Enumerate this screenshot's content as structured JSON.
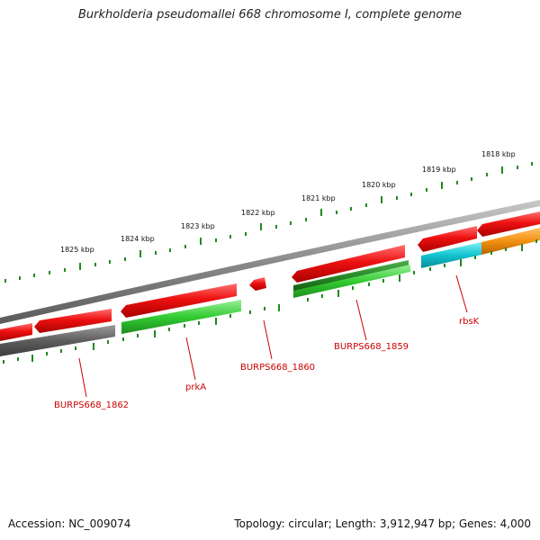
{
  "title": "Burkholderia pseudomallei 668 chromosome I, complete genome",
  "footer": {
    "accession": "Accession: NC_009074",
    "stats": "Topology: circular; Length: 3,912,947 bp; Genes: 4,000"
  },
  "ticks": [
    "1818 kbp",
    "1819 kbp",
    "1820 kbp",
    "1821 kbp",
    "1822 kbp",
    "1823 kbp",
    "1824 kbp",
    "1825 kbp"
  ],
  "gene_labels": [
    "rbsK",
    "BURPS668_1859",
    "BURPS668_1860",
    "prkA",
    "BURPS668_1862"
  ],
  "colors": {
    "backbone": "#8a8a8a",
    "forward_gene": "#ee1111",
    "green_gene": "#33cc33",
    "dark_green_gene": "#2a9a2a",
    "grey_gene": "#666666",
    "cyan_gene": "#11c4d0",
    "orange_gene": "#f39010",
    "tick_green": "#1f8a1f",
    "label_red": "#cc0000"
  }
}
